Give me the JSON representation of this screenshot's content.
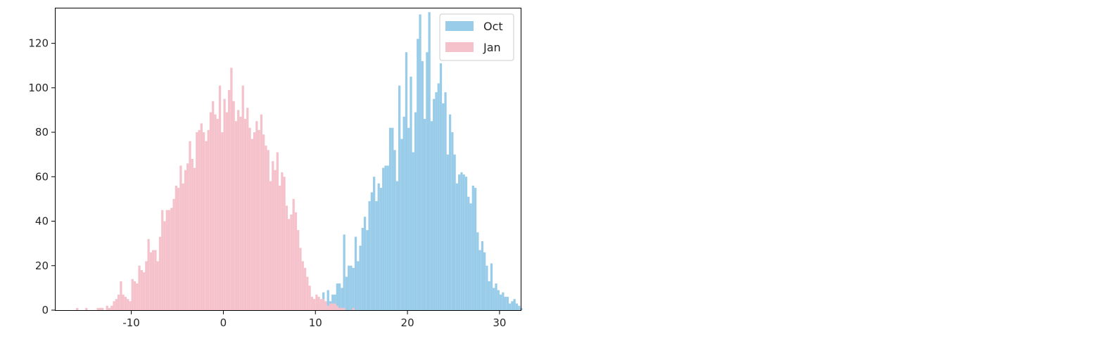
{
  "chart_data": {
    "type": "histogram",
    "title": "",
    "xlabel": "",
    "ylabel": "",
    "xlim": [
      -18.3,
      32.3
    ],
    "ylim": [
      0,
      136
    ],
    "xticks": [
      -10,
      0,
      10,
      20,
      30
    ],
    "xtick_labels": [
      "-10",
      "0",
      "10",
      "20",
      "30"
    ],
    "yticks": [
      0,
      20,
      40,
      60,
      80,
      100,
      120
    ],
    "ytick_labels": [
      "0",
      "20",
      "40",
      "60",
      "80",
      "100",
      "120"
    ],
    "grid": false,
    "legend_position": "top-right",
    "bin_width": 0.25,
    "series": [
      {
        "name": "Oct",
        "color": "#99cce8",
        "bin_start": 9.75,
        "counts": [
          1,
          0,
          3,
          0,
          8,
          0,
          9,
          4,
          7,
          7,
          12,
          12,
          10,
          34,
          15,
          20,
          20,
          19,
          33,
          22,
          29,
          37,
          42,
          36,
          49,
          53,
          60,
          49,
          57,
          55,
          64,
          65,
          65,
          82,
          82,
          72,
          58,
          101,
          77,
          87,
          116,
          82,
          105,
          71,
          89,
          122,
          133,
          112,
          86,
          116,
          134,
          85,
          95,
          98,
          102,
          111,
          93,
          98,
          70,
          88,
          80,
          70,
          57,
          61,
          62,
          61,
          60,
          51,
          48,
          56,
          55,
          35,
          27,
          31,
          26,
          20,
          13,
          21,
          10,
          12,
          9,
          7,
          8,
          6,
          6,
          3,
          4,
          5,
          3,
          2,
          1
        ]
      },
      {
        "name": "Jan",
        "color": "#f5c2cc",
        "bin_start": -16.0,
        "counts": [
          1,
          0,
          0,
          0,
          1,
          0,
          0,
          0,
          0,
          1,
          1,
          1,
          0,
          2,
          1,
          2,
          4,
          5,
          7,
          13,
          7,
          6,
          5,
          4,
          14,
          13,
          12,
          20,
          18,
          17,
          22,
          32,
          26,
          27,
          27,
          22,
          33,
          45,
          40,
          45,
          45,
          46,
          50,
          56,
          55,
          65,
          57,
          63,
          66,
          76,
          68,
          64,
          80,
          81,
          84,
          80,
          76,
          81,
          89,
          94,
          88,
          86,
          101,
          80,
          95,
          89,
          99,
          109,
          94,
          85,
          90,
          87,
          101,
          86,
          91,
          82,
          77,
          80,
          85,
          81,
          88,
          79,
          74,
          72,
          58,
          67,
          63,
          71,
          56,
          62,
          60,
          47,
          41,
          43,
          50,
          44,
          36,
          28,
          22,
          19,
          15,
          11,
          6,
          5,
          7,
          6,
          5,
          5,
          4,
          2,
          3,
          3,
          3,
          2,
          1,
          1,
          1,
          0,
          0,
          0,
          1
        ]
      }
    ]
  }
}
